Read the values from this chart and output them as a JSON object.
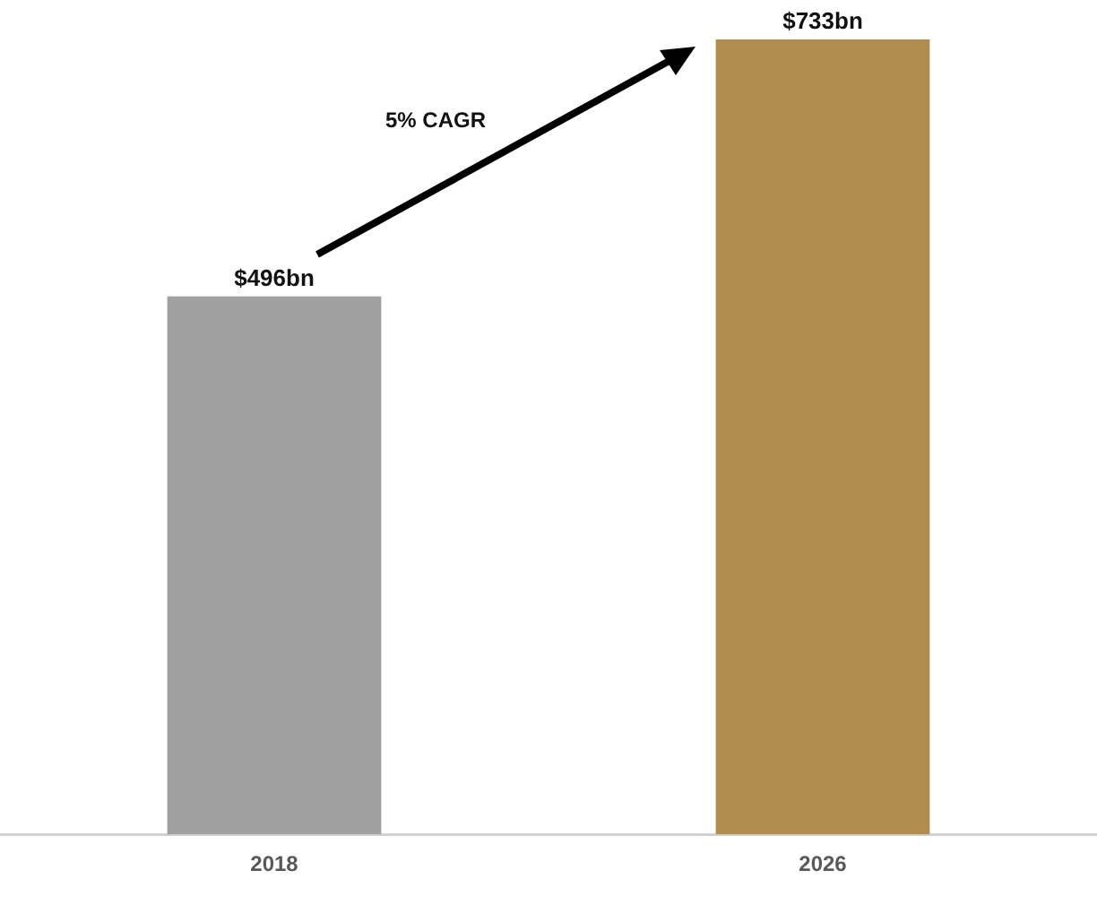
{
  "chart_data": {
    "type": "bar",
    "categories": [
      "2018",
      "2026"
    ],
    "values": [
      496,
      733
    ],
    "colors": [
      "#a0a0a0",
      "#b08d4f"
    ],
    "value_labels": [
      "$496bn",
      "$733bn"
    ],
    "annotations": [
      "5% CAGR"
    ],
    "grid": false,
    "legend": false,
    "tick_labels": "x"
  }
}
